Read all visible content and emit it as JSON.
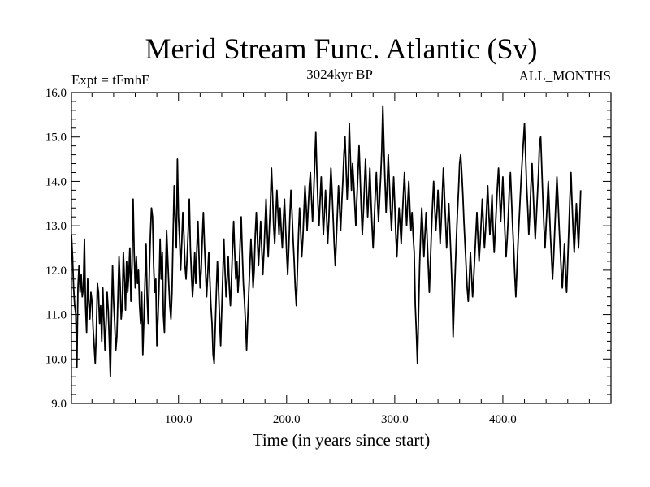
{
  "chart_data": {
    "type": "line",
    "title": "Merid Stream Func. Atlantic (Sv)",
    "left_label": "Expt = tFmhE",
    "center_label": "3024kyr BP",
    "right_label": "ALL_MONTHS",
    "xlabel": "Time (in years since start)",
    "ylabel": "",
    "xlim": [
      1,
      500
    ],
    "ylim": [
      9.0,
      16.0
    ],
    "xticks": [
      100,
      200,
      300,
      400
    ],
    "xtick_labels": [
      "100.0",
      "200.0",
      "300.0",
      "400.0"
    ],
    "yticks": [
      9,
      10,
      11,
      12,
      13,
      14,
      15,
      16
    ],
    "ytick_labels": [
      "9.0",
      "10.0",
      "11.0",
      "12.0",
      "13.0",
      "14.0",
      "15.0",
      "16.0"
    ],
    "series": [
      {
        "name": "Merid Stream Func. Atlantic",
        "color": "#000000",
        "x_start": 1,
        "x_step": 1,
        "values": [
          12.8,
          12.3,
          11.6,
          11.2,
          11.0,
          9.8,
          11.6,
          12.1,
          11.5,
          11.9,
          11.4,
          11.6,
          12.7,
          11.2,
          10.6,
          11.8,
          11.3,
          10.9,
          11.5,
          11.3,
          10.7,
          10.3,
          9.9,
          10.6,
          11.7,
          11.5,
          10.8,
          11.2,
          10.4,
          11.6,
          10.9,
          10.2,
          10.8,
          11.5,
          11.1,
          10.4,
          9.6,
          10.9,
          12.1,
          11.3,
          10.8,
          10.2,
          10.5,
          11.4,
          12.3,
          11.7,
          10.9,
          11.2,
          12.4,
          11.8,
          11.1,
          12.2,
          11.5,
          11.9,
          12.5,
          11.3,
          12.1,
          13.6,
          12.4,
          11.6,
          12.3,
          11.7,
          12.0,
          11.2,
          10.8,
          11.5,
          10.1,
          10.9,
          11.7,
          12.6,
          11.4,
          10.8,
          11.9,
          12.8,
          13.4,
          13.2,
          12.1,
          11.5,
          11.8,
          10.3,
          10.9,
          11.6,
          12.7,
          11.8,
          12.4,
          11.0,
          10.6,
          11.9,
          12.9,
          12.3,
          11.7,
          11.2,
          10.9,
          11.5,
          12.8,
          13.9,
          13.1,
          12.5,
          14.5,
          13.2,
          12.7,
          12.0,
          12.6,
          13.3,
          12.8,
          12.1,
          11.8,
          12.3,
          12.9,
          13.6,
          12.5,
          11.9,
          11.4,
          11.8,
          12.4,
          11.7,
          12.5,
          13.1,
          12.3,
          11.6,
          12.0,
          12.7,
          13.3,
          12.6,
          12.0,
          11.4,
          11.9,
          12.4,
          11.8,
          11.2,
          10.8,
          10.1,
          9.9,
          10.7,
          11.5,
          12.2,
          11.6,
          10.9,
          10.3,
          11.1,
          11.9,
          12.7,
          12.0,
          11.4,
          11.8,
          12.3,
          11.6,
          11.2,
          11.8,
          12.5,
          13.1,
          12.4,
          11.8,
          12.2,
          11.5,
          11.9,
          12.6,
          13.2,
          12.4,
          11.7,
          11.3,
          10.8,
          10.2,
          10.9,
          11.5,
          12.1,
          12.7,
          12.2,
          11.6,
          12.0,
          12.8,
          13.3,
          12.7,
          12.1,
          12.6,
          13.1,
          12.5,
          11.9,
          12.4,
          13.0,
          13.6,
          12.9,
          12.3,
          12.9,
          13.5,
          14.3,
          13.7,
          13.0,
          12.6,
          13.2,
          13.8,
          13.3,
          12.8,
          13.4,
          12.9,
          12.5,
          13.1,
          13.6,
          13.0,
          12.4,
          11.9,
          12.5,
          13.2,
          13.8,
          13.3,
          12.7,
          12.2,
          11.6,
          11.2,
          12.0,
          12.8,
          13.4,
          12.9,
          12.3,
          12.7,
          13.3,
          13.9,
          13.5,
          12.9,
          13.4,
          13.9,
          14.2,
          13.6,
          13.1,
          13.7,
          14.4,
          15.1,
          14.2,
          13.5,
          13.0,
          13.6,
          14.1,
          13.4,
          12.8,
          13.3,
          13.8,
          13.2,
          12.6,
          13.1,
          13.7,
          14.3,
          13.8,
          13.2,
          12.6,
          12.1,
          12.7,
          13.3,
          13.9,
          13.4,
          12.9,
          13.5,
          14.0,
          14.6,
          15.0,
          14.3,
          13.6,
          14.2,
          15.3,
          14.5,
          13.8,
          14.4,
          14.0,
          13.5,
          13.0,
          13.6,
          14.2,
          14.8,
          14.1,
          13.4,
          12.8,
          13.3,
          13.9,
          14.5,
          13.8,
          13.2,
          13.7,
          14.3,
          13.6,
          13.0,
          12.5,
          13.1,
          13.7,
          14.2,
          13.6,
          13.1,
          13.6,
          14.1,
          14.7,
          15.7,
          14.8,
          14.0,
          13.3,
          13.9,
          14.6,
          14.0,
          13.4,
          12.9,
          13.5,
          14.1,
          13.5,
          12.8,
          12.3,
          12.9,
          13.4,
          13.0,
          12.6,
          13.2,
          13.7,
          14.2,
          13.6,
          13.0,
          13.5,
          14.0,
          13.4,
          12.9,
          13.3,
          12.8,
          12.4,
          11.2,
          10.6,
          9.9,
          11.0,
          12.1,
          12.8,
          13.4,
          12.9,
          12.3,
          12.8,
          13.3,
          12.7,
          12.1,
          11.5,
          12.2,
          12.9,
          13.5,
          14.0,
          13.4,
          12.9,
          13.3,
          13.8,
          13.2,
          12.6,
          13.1,
          13.7,
          14.3,
          13.7,
          13.1,
          12.5,
          13.0,
          13.5,
          12.9,
          12.3,
          11.6,
          10.5,
          11.3,
          12.0,
          12.7,
          13.3,
          13.8,
          14.4,
          14.6,
          14.2,
          13.7,
          13.1,
          12.6,
          12.1,
          11.6,
          11.3,
          11.8,
          12.4,
          11.9,
          11.4,
          11.8,
          12.3,
          12.8,
          13.3,
          12.7,
          12.2,
          12.6,
          13.1,
          13.6,
          13.0,
          12.5,
          12.9,
          13.4,
          13.9,
          13.3,
          12.8,
          13.2,
          13.7,
          12.9,
          12.4,
          12.9,
          13.4,
          13.9,
          14.3,
          13.7,
          13.1,
          13.6,
          14.1,
          13.4,
          12.8,
          12.3,
          12.7,
          13.2,
          13.8,
          14.2,
          13.6,
          13.0,
          12.5,
          11.9,
          11.4,
          12.0,
          12.6,
          13.1,
          13.6,
          14.1,
          14.5,
          14.9,
          15.3,
          14.6,
          13.9,
          13.4,
          12.8,
          13.3,
          13.9,
          14.4,
          13.8,
          13.2,
          12.7,
          13.2,
          13.7,
          14.2,
          14.9,
          15.0,
          14.3,
          13.6,
          13.0,
          12.5,
          13.0,
          13.5,
          14.0,
          13.4,
          12.8,
          12.3,
          11.8,
          12.3,
          12.9,
          13.5,
          14.1,
          13.6,
          13.0,
          12.5,
          12.0,
          11.6,
          12.1,
          12.6,
          11.9,
          11.5,
          12.2,
          12.9,
          13.6,
          14.2,
          13.5,
          12.9,
          12.4,
          12.9,
          13.5,
          13.0,
          12.5,
          13.1,
          13.8
        ]
      }
    ]
  }
}
